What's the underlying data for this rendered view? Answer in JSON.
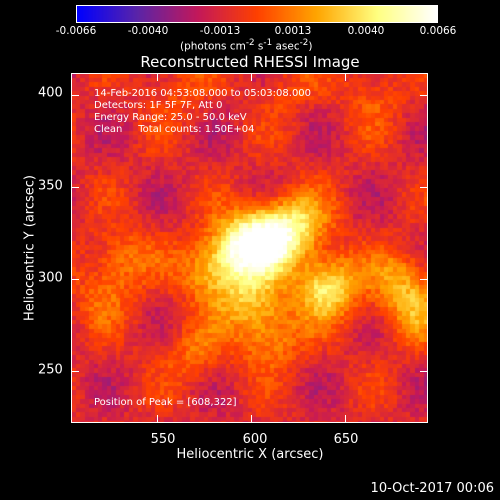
{
  "colorbar": {
    "ticks": [
      "-0.0066",
      "-0.0040",
      "-0.0013",
      "0.0013",
      "0.0040",
      "0.0066"
    ],
    "unit_html": "(photons cm<sup>-2</sup> s<sup>-1</sup> asec<sup>-2</sup>)",
    "colors": [
      "#0000ff",
      "#5a24a8",
      "#c2185b",
      "#ff4000",
      "#ffa500",
      "#ffff80",
      "#ffffff"
    ]
  },
  "title": "Reconstructed RHESSI Image",
  "info": {
    "line1": "14-Feb-2016 04:53:08.000 to 05:03:08.000",
    "line2": "Detectors: 1F 5F 7F, Att 0",
    "line3": "Energy Range: 25.0 - 50.0 keV",
    "line4": "Clean     Total counts: 1.50E+04",
    "peak": "Position of Peak = [608,322]"
  },
  "chart_data": {
    "type": "heatmap",
    "title": "Reconstructed RHESSI Image",
    "xlabel": "Heliocentric X (arcsec)",
    "ylabel": "Heliocentric Y (arcsec)",
    "xlim": [
      504,
      694
    ],
    "ylim": [
      222,
      412
    ],
    "xticks": [
      550,
      600,
      650
    ],
    "yticks": [
      250,
      300,
      350,
      400
    ],
    "xtick_labels": [
      "550",
      "600",
      "650"
    ],
    "ytick_labels": [
      "250",
      "300",
      "350",
      "400"
    ],
    "clim": [
      -0.0066,
      0.0066
    ],
    "peak": [
      608,
      322
    ],
    "sources": [
      {
        "x": 608,
        "y": 322,
        "amp": 0.0066
      },
      {
        "x": 593,
        "y": 318,
        "amp": 0.0045
      },
      {
        "x": 625,
        "y": 331,
        "amp": 0.004
      },
      {
        "x": 640,
        "y": 297,
        "amp": 0.0055
      },
      {
        "x": 578,
        "y": 305,
        "amp": 0.0035
      },
      {
        "x": 600,
        "y": 290,
        "amp": 0.0035
      },
      {
        "x": 610,
        "y": 270,
        "amp": 0.003
      },
      {
        "x": 530,
        "y": 312,
        "amp": 0.0025
      },
      {
        "x": 570,
        "y": 262,
        "amp": 0.002
      },
      {
        "x": 680,
        "y": 300,
        "amp": 0.003
      },
      {
        "x": 688,
        "y": 282,
        "amp": 0.0025
      },
      {
        "x": 520,
        "y": 290,
        "amp": 0.0015
      },
      {
        "x": 560,
        "y": 405,
        "amp": 0.0015
      },
      {
        "x": 620,
        "y": 405,
        "amp": 0.0012
      },
      {
        "x": 665,
        "y": 400,
        "amp": 0.0015
      }
    ]
  },
  "timestamp": "10-Oct-2017 00:06"
}
